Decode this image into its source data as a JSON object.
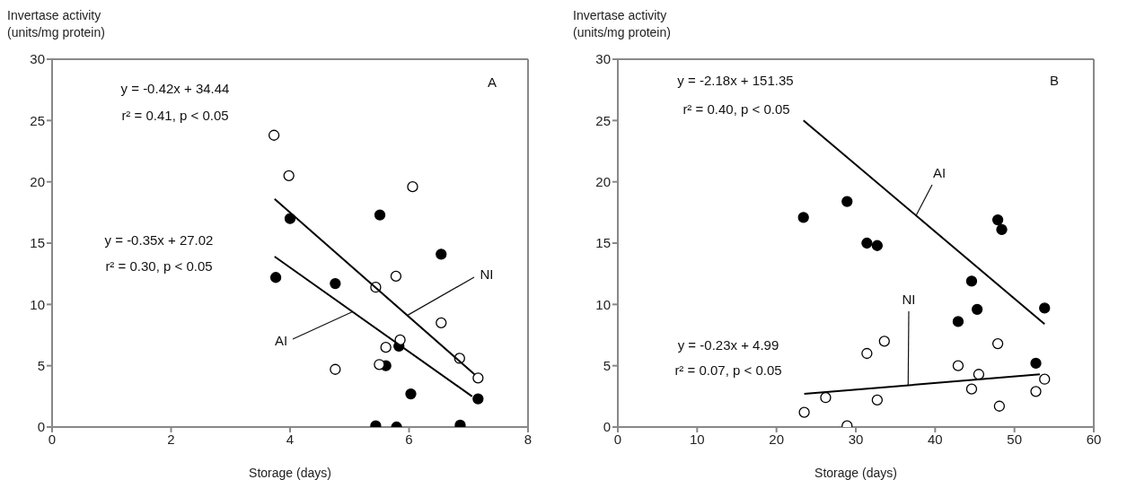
{
  "chart_data": [
    {
      "type": "scatter",
      "xlabel": "Storage (days)",
      "ylabel": "Invertase activity\n(units/mg protein)",
      "xlim": [
        0,
        8
      ],
      "ylim": [
        0,
        30
      ],
      "xticks": [
        0,
        2,
        4,
        6,
        8
      ],
      "yticks": [
        0,
        5,
        10,
        15,
        20,
        25,
        30
      ],
      "series": [
        {
          "color": "#000000",
          "marker": "circle",
          "x": [
            4.0,
            5.51,
            6.54,
            3.76,
            4.76,
            5.61,
            5.83,
            6.03,
            7.16,
            5.44,
            5.79,
            6.86
          ],
          "values": [
            17.0,
            17.3,
            14.1,
            12.2,
            11.7,
            5.0,
            6.6,
            2.7,
            2.3,
            0.1,
            0.0,
            0.15
          ]
        },
        {
          "color": "#ffffff",
          "marker": "circle",
          "x": [
            3.73,
            3.98,
            6.06,
            5.78,
            5.44,
            6.54,
            5.85,
            5.61,
            4.76,
            5.5,
            6.85,
            7.16
          ],
          "values": [
            23.8,
            20.5,
            19.6,
            12.3,
            11.4,
            8.5,
            7.1,
            6.5,
            4.7,
            5.1,
            5.6,
            4.0
          ]
        },
        {
          "type": "line",
          "color": "#000000",
          "marker": "none",
          "x": [
            3.74,
            7.1
          ],
          "values": [
            18.6,
            4.3
          ]
        },
        {
          "type": "line",
          "color": "#000000",
          "marker": "none",
          "x": [
            3.74,
            7.06
          ],
          "values": [
            13.9,
            2.5
          ]
        }
      ],
      "annotations": [
        "y = -0.42x + 34.44",
        "r² = 0.41, p < 0.05",
        "y = -0.35x + 27.02",
        "r² = 0.30, p < 0.05",
        "A",
        {
          "text": "AI",
          "x": 5.05,
          "y": 9.4
        },
        {
          "text": "NI",
          "x": 5.97,
          "y": 9.1
        }
      ]
    },
    {
      "type": "scatter",
      "xlabel": "Storage (days)",
      "ylabel": "Invertase activity\n(units/mg protein)",
      "xlim": [
        0,
        60
      ],
      "ylim": [
        0,
        30
      ],
      "xticks": [
        0,
        10,
        20,
        30,
        40,
        50,
        60
      ],
      "yticks": [
        0,
        5,
        10,
        15,
        20,
        25,
        30
      ],
      "series": [
        {
          "color": "#000000",
          "marker": "circle",
          "x": [
            23.4,
            28.9,
            31.4,
            32.7,
            47.9,
            48.4,
            44.6,
            45.3,
            42.9,
            53.8,
            52.7
          ],
          "values": [
            17.1,
            18.4,
            15.0,
            14.8,
            16.9,
            16.1,
            11.9,
            9.6,
            8.6,
            9.7,
            5.2
          ]
        },
        {
          "color": "#ffffff",
          "marker": "circle",
          "x": [
            23.5,
            26.2,
            28.9,
            31.4,
            33.6,
            32.7,
            42.9,
            44.6,
            45.5,
            47.9,
            48.1,
            52.7,
            53.8
          ],
          "values": [
            1.2,
            2.4,
            0.1,
            6.0,
            7.0,
            2.2,
            5.0,
            3.1,
            4.3,
            6.8,
            1.7,
            2.9,
            3.9
          ]
        },
        {
          "type": "line",
          "color": "#000000",
          "marker": "none",
          "x": [
            23.4,
            53.8
          ],
          "values": [
            25.0,
            8.4
          ]
        },
        {
          "type": "line",
          "color": "#000000",
          "marker": "none",
          "x": [
            23.5,
            53.2
          ],
          "values": [
            2.7,
            4.3
          ]
        }
      ],
      "annotations": [
        "y = -2.18x + 151.35",
        "r² = 0.40, p < 0.05",
        "y = -0.23x + 4.99",
        "r² = 0.07, p < 0.05",
        "B",
        {
          "text": "AI",
          "x": 37.6,
          "y": 17.25
        },
        {
          "text": "NI",
          "x": 36.6,
          "y": 3.4
        }
      ]
    }
  ]
}
